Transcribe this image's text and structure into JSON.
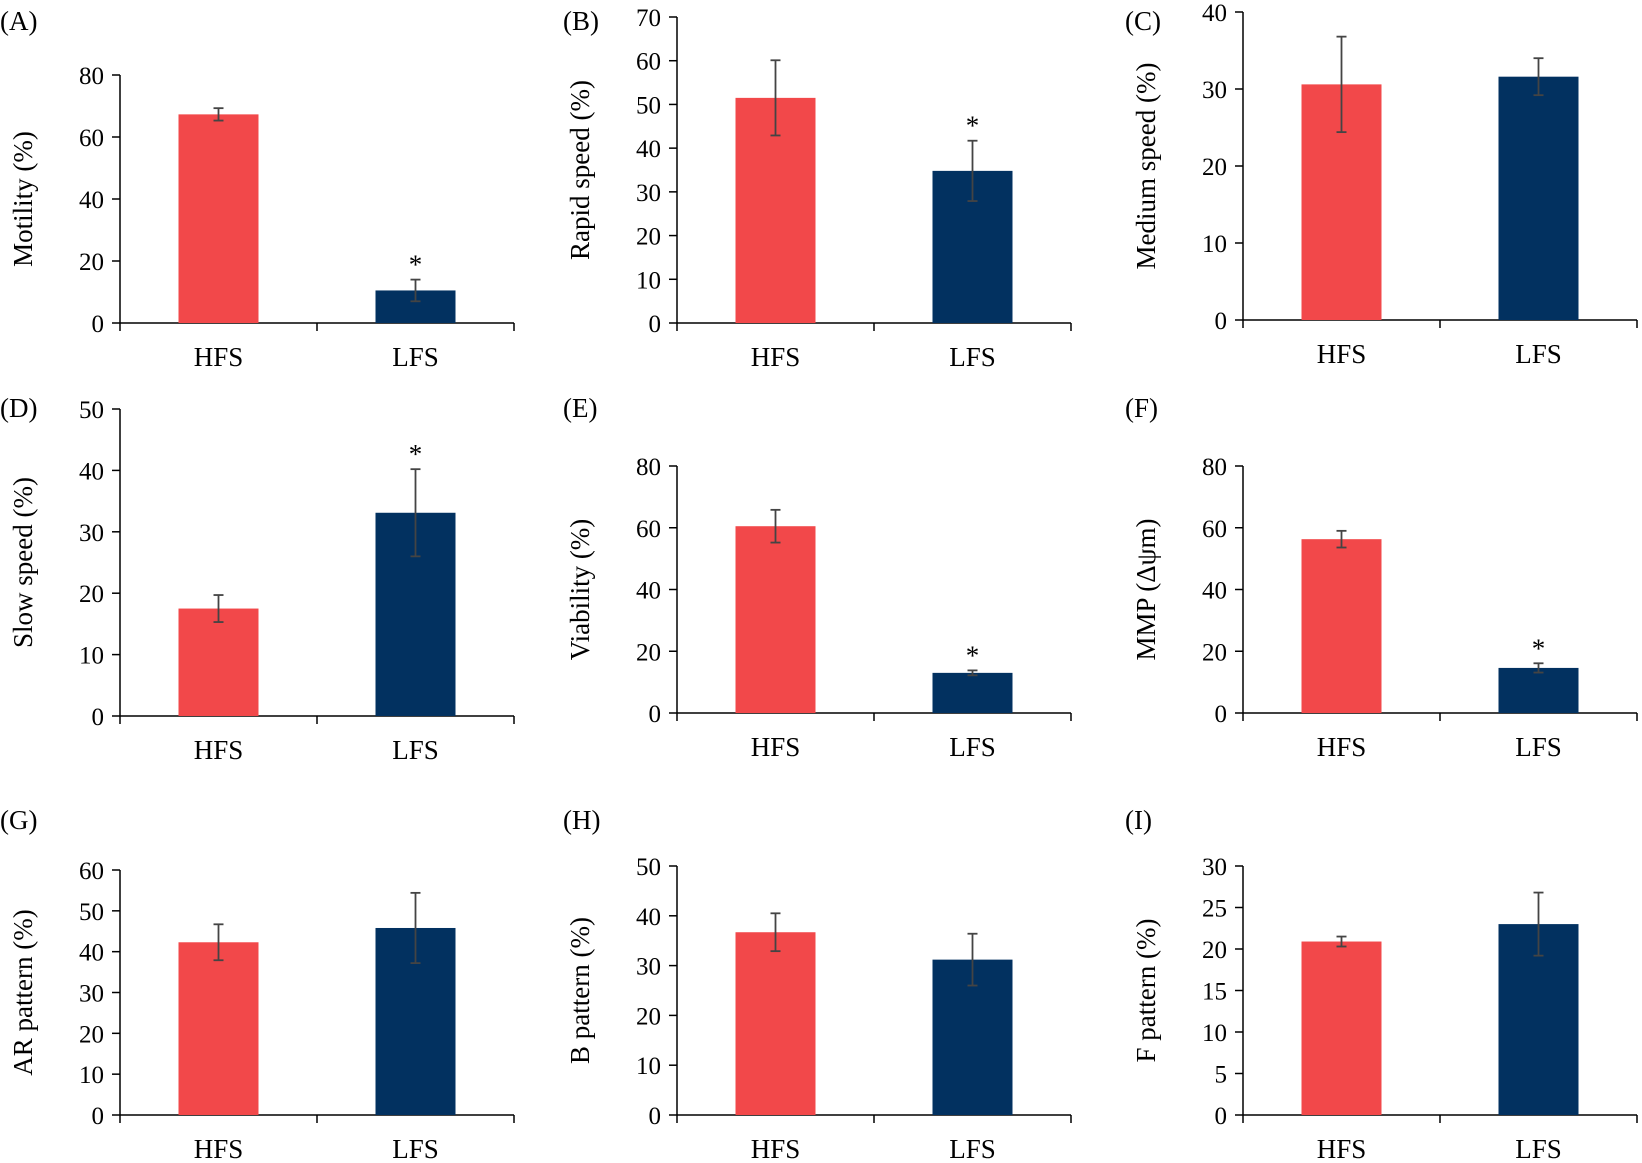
{
  "colors": {
    "hfs": "#F2484A",
    "lfs": "#023160",
    "axis": "#000000",
    "error_bar": "#444444"
  },
  "chart_data": [
    {
      "type": "bar",
      "label": "(A)",
      "ylabel": "Motility (%)",
      "categories": [
        "HFS",
        "LFS"
      ],
      "values": [
        67.3,
        10.5
      ],
      "errors": [
        2.0,
        3.5
      ],
      "significance": [
        "",
        "*"
      ],
      "ylim": [
        0,
        80
      ],
      "yticks": [
        "0",
        "20",
        "40",
        "60",
        "80"
      ]
    },
    {
      "type": "bar",
      "label": "(B)",
      "ylabel": "Rapid speed (%)",
      "categories": [
        "HFS",
        "LFS"
      ],
      "values": [
        51.5,
        34.8
      ],
      "errors": [
        8.6,
        6.9
      ],
      "significance": [
        "",
        "*"
      ],
      "ylim": [
        0,
        70
      ],
      "yticks": [
        "0",
        "10",
        "20",
        "30",
        "40",
        "50",
        "60",
        "70"
      ]
    },
    {
      "type": "bar",
      "label": "(C)",
      "ylabel": "Medium speed (%)",
      "categories": [
        "HFS",
        "LFS"
      ],
      "values": [
        30.6,
        31.6
      ],
      "errors": [
        6.2,
        2.4
      ],
      "significance": [
        "",
        ""
      ],
      "ylim": [
        0,
        40
      ],
      "yticks": [
        "0",
        "10",
        "20",
        "30",
        "40"
      ]
    },
    {
      "type": "bar",
      "label": "(D)",
      "ylabel": "Slow speed (%)",
      "categories": [
        "HFS",
        "LFS"
      ],
      "values": [
        17.5,
        33.1
      ],
      "errors": [
        2.2,
        7.1
      ],
      "significance": [
        "",
        "*"
      ],
      "ylim": [
        0,
        50
      ],
      "yticks": [
        "0",
        "10",
        "20",
        "30",
        "40",
        "50"
      ]
    },
    {
      "type": "bar",
      "label": "(E)",
      "ylabel": "Viability (%)",
      "categories": [
        "HFS",
        "LFS"
      ],
      "values": [
        60.5,
        13.0
      ],
      "errors": [
        5.3,
        0.8
      ],
      "significance": [
        "",
        "*"
      ],
      "ylim": [
        0,
        80
      ],
      "yticks": [
        "0",
        "20",
        "40",
        "60",
        "80"
      ]
    },
    {
      "type": "bar",
      "label": "(F)",
      "ylabel": "MMP (Δψm)",
      "categories": [
        "HFS",
        "LFS"
      ],
      "values": [
        56.3,
        14.6
      ],
      "errors": [
        2.7,
        1.5
      ],
      "significance": [
        "",
        "*"
      ],
      "ylim": [
        0,
        80
      ],
      "yticks": [
        "0",
        "20",
        "40",
        "60",
        "80"
      ]
    },
    {
      "type": "bar",
      "label": "(G)",
      "ylabel": "AR pattern (%)",
      "categories": [
        "HFS",
        "LFS"
      ],
      "values": [
        42.3,
        45.8
      ],
      "errors": [
        4.4,
        8.6
      ],
      "significance": [
        "",
        ""
      ],
      "ylim": [
        0,
        60
      ],
      "yticks": [
        "0",
        "10",
        "20",
        "30",
        "40",
        "50",
        "60"
      ]
    },
    {
      "type": "bar",
      "label": "(H)",
      "ylabel": "B pattern (%)",
      "categories": [
        "HFS",
        "LFS"
      ],
      "values": [
        36.7,
        31.2
      ],
      "errors": [
        3.8,
        5.2
      ],
      "significance": [
        "",
        ""
      ],
      "ylim": [
        0,
        50
      ],
      "yticks": [
        "0",
        "10",
        "20",
        "30",
        "40",
        "50"
      ]
    },
    {
      "type": "bar",
      "label": "(I)",
      "ylabel": "F pattern (%)",
      "categories": [
        "HFS",
        "LFS"
      ],
      "values": [
        20.9,
        23.0
      ],
      "errors": [
        0.6,
        3.8
      ],
      "significance": [
        "",
        ""
      ],
      "ylim": [
        0,
        30
      ],
      "yticks": [
        "0",
        "5",
        "10",
        "15",
        "20",
        "25",
        "30"
      ]
    }
  ]
}
